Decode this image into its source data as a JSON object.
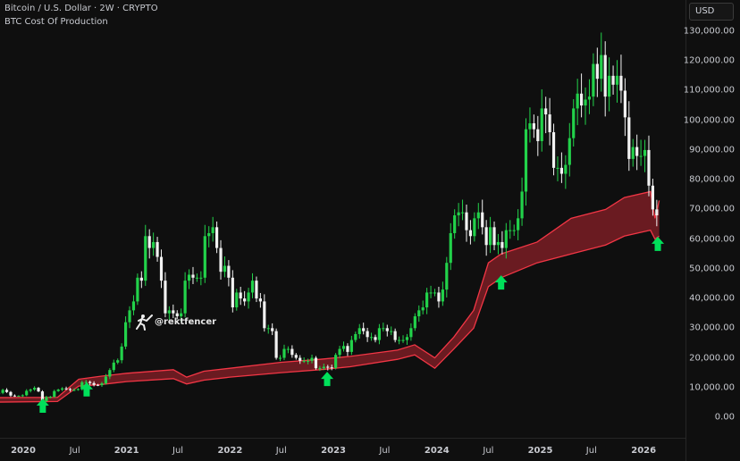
{
  "header": {
    "symbol_line": "Bitcoin / U.S. Dollar · 2W · CRYPTO",
    "indicator_line": "BTC Cost Of Production"
  },
  "currency_button": "USD",
  "watermark": "@rektfencer",
  "colors": {
    "background": "#0f0f0f",
    "candle_up": "#22d24a",
    "candle_down": "#f2f2f2",
    "band_line": "#f23645",
    "band_fill": "#7a1d24",
    "arrow": "#00e05a"
  },
  "chart_data": {
    "type": "candlestick",
    "title": "",
    "interval": "2W",
    "start_date": "2019-10-07",
    "first_open": 8000,
    "closes": [
      8200,
      9200,
      8500,
      7300,
      7200,
      7200,
      7400,
      8900,
      9300,
      9900,
      8700,
      5400,
      6800,
      6900,
      8800,
      9300,
      9700,
      9500,
      9200,
      9200,
      9500,
      11800,
      11900,
      11500,
      10900,
      10800,
      11400,
      13700,
      15900,
      18400,
      19200,
      23800,
      32000,
      36000,
      39000,
      47000,
      46000,
      61000,
      57000,
      59000,
      54000,
      46000,
      35000,
      36000,
      35000,
      34000,
      35000,
      46000,
      48000,
      47000,
      47000,
      47000,
      61000,
      62000,
      64000,
      57000,
      49000,
      51000,
      47000,
      37000,
      42000,
      40000,
      39000,
      42000,
      46000,
      40000,
      39000,
      30000,
      30000,
      29000,
      20000,
      20000,
      23000,
      23000,
      21000,
      20000,
      19000,
      19000,
      19000,
      20000,
      16500,
      16500,
      17000,
      16800,
      16600,
      21000,
      23000,
      24000,
      22000,
      26000,
      28000,
      30000,
      29000,
      27000,
      27000,
      26000,
      30000,
      30000,
      29000,
      29000,
      26000,
      26000,
      26000,
      27000,
      30000,
      34000,
      36000,
      37000,
      42000,
      42000,
      42000,
      39000,
      43000,
      52000,
      62000,
      68000,
      69000,
      69000,
      63000,
      61000,
      67000,
      69000,
      64000,
      58000,
      64000,
      58000,
      59000,
      57000,
      63000,
      63000,
      63000,
      67000,
      76000,
      97000,
      99000,
      97000,
      93000,
      104000,
      102000,
      96000,
      84000,
      84000,
      82000,
      85000,
      94000,
      104000,
      109000,
      105000,
      107000,
      108000,
      119000,
      114000,
      122000,
      108000,
      115000,
      112000,
      115000,
      110000,
      101000,
      87000,
      91000,
      88000,
      88000,
      90000,
      78000,
      70000,
      68000
    ],
    "cost_of_production_band": [
      {
        "date": "2019-10-07",
        "lower": 5100,
        "upper": 6600
      },
      {
        "date": "2020-05-01",
        "lower": 5300,
        "upper": 6700
      },
      {
        "date": "2020-07-15",
        "lower": 10500,
        "upper": 12800
      },
      {
        "date": "2020-10-01",
        "lower": 11000,
        "upper": 13800
      },
      {
        "date": "2021-01-01",
        "lower": 12000,
        "upper": 14800
      },
      {
        "date": "2021-06-15",
        "lower": 13000,
        "upper": 16000
      },
      {
        "date": "2021-08-01",
        "lower": 11200,
        "upper": 13500
      },
      {
        "date": "2021-10-01",
        "lower": 12500,
        "upper": 15500
      },
      {
        "date": "2022-01-01",
        "lower": 13500,
        "upper": 16500
      },
      {
        "date": "2022-07-01",
        "lower": 15000,
        "upper": 18500
      },
      {
        "date": "2022-11-15",
        "lower": 16000,
        "upper": 19500
      },
      {
        "date": "2023-03-01",
        "lower": 17000,
        "upper": 20500
      },
      {
        "date": "2023-08-15",
        "lower": 19500,
        "upper": 22600
      },
      {
        "date": "2023-10-15",
        "lower": 21000,
        "upper": 24400
      },
      {
        "date": "2023-12-25",
        "lower": 16500,
        "upper": 20000
      },
      {
        "date": "2024-03-01",
        "lower": 23000,
        "upper": 27000
      },
      {
        "date": "2024-05-10",
        "lower": 30000,
        "upper": 36000
      },
      {
        "date": "2024-07-01",
        "lower": 44000,
        "upper": 52000
      },
      {
        "date": "2024-08-15",
        "lower": 47000,
        "upper": 55000
      },
      {
        "date": "2024-12-20",
        "lower": 52000,
        "upper": 59000
      },
      {
        "date": "2025-04-20",
        "lower": 55000,
        "upper": 67000
      },
      {
        "date": "2025-08-20",
        "lower": 58000,
        "upper": 70000
      },
      {
        "date": "2025-10-25",
        "lower": 61000,
        "upper": 74000
      },
      {
        "date": "2026-01-25",
        "lower": 63000,
        "upper": 76000
      },
      {
        "date": "2026-02-10",
        "lower": 60000,
        "upper": 67000
      },
      {
        "date": "2026-02-25",
        "lower": 61000,
        "upper": 73000
      }
    ],
    "buy_arrows": [
      {
        "date": "2020-03-10",
        "price": 1500
      },
      {
        "date": "2020-08-12",
        "price": 7000
      },
      {
        "date": "2022-12-10",
        "price": 10500
      },
      {
        "date": "2024-08-15",
        "price": 43000
      },
      {
        "date": "2026-02-20",
        "price": 56000
      }
    ],
    "ylim": [
      0,
      130000
    ],
    "y_ticks": [
      "0.00",
      "10,000.00",
      "20,000.00",
      "30,000.00",
      "40,000.00",
      "50,000.00",
      "60,000.00",
      "70,000.00",
      "80,000.00",
      "90,000.00",
      "100,000.00",
      "110,000.00",
      "120,000.00",
      "130,000.00"
    ],
    "y_tick_values": [
      0,
      10000,
      20000,
      30000,
      40000,
      50000,
      60000,
      70000,
      80000,
      90000,
      100000,
      110000,
      120000,
      130000
    ],
    "x_ticks": [
      {
        "label": "2020",
        "date": "2020-01-01"
      },
      {
        "label": "Jul",
        "date": "2020-07-01"
      },
      {
        "label": "2021",
        "date": "2021-01-01"
      },
      {
        "label": "Jul",
        "date": "2021-07-01"
      },
      {
        "label": "2022",
        "date": "2022-01-01"
      },
      {
        "label": "Jul",
        "date": "2022-07-01"
      },
      {
        "label": "2023",
        "date": "2023-01-01"
      },
      {
        "label": "Jul",
        "date": "2023-07-01"
      },
      {
        "label": "2024",
        "date": "2024-01-01"
      },
      {
        "label": "Jul",
        "date": "2024-07-01"
      },
      {
        "label": "2025",
        "date": "2025-01-01"
      },
      {
        "label": "Jul",
        "date": "2025-07-01"
      },
      {
        "label": "2026",
        "date": "2026-01-01"
      }
    ],
    "grid": false
  }
}
